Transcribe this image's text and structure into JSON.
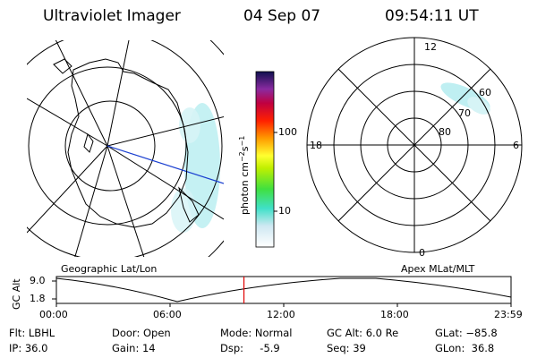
{
  "header": {
    "instrument": "Ultraviolet Imager",
    "date": "04 Sep 07",
    "time": "09:54:11 UT"
  },
  "geo_panel": {
    "label": "Geographic Lat/Lon"
  },
  "apex_panel": {
    "label": "Apex MLat/MLT",
    "mlt_labels": {
      "top": "12",
      "left": "18",
      "right": "6",
      "bottom": "0"
    },
    "lat_labels": [
      "60",
      "70",
      "80"
    ]
  },
  "colorbar": {
    "unit_label": "photon cm",
    "unit_sup1": "−2",
    "unit_s": "s",
    "unit_sup2": "−1",
    "tick_100": "100",
    "tick_10": "10"
  },
  "timeline": {
    "ylabel": "GC Alt",
    "ytick_top": "9.0",
    "ytick_bottom": "1.8",
    "xticks": [
      "00:00",
      "06:00",
      "12:00",
      "18:00",
      "23:59"
    ],
    "cursor_hour": 9.9
  },
  "footer": {
    "filter": "Flt: LBHL",
    "ip": "IP: 36.0",
    "door": "Door: Open",
    "gain": "Gain: 14",
    "mode": "Mode: Normal",
    "dsp": "Dsp:     -5.9",
    "gc_alt": "GC Alt: 6.0 Re",
    "seq": "Seq: 39",
    "glat": "GLat: −85.8",
    "glon": "GLon:  36.8"
  },
  "colors": {
    "aurora": "#bfeff2",
    "cursor": "#e00000",
    "blue_line": "#1a3fd0"
  }
}
